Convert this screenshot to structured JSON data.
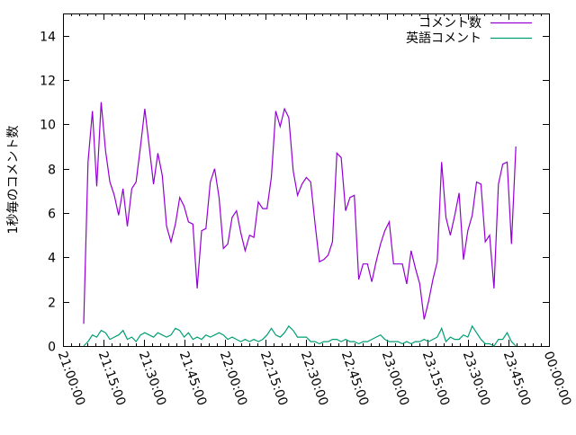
{
  "chart_data": {
    "type": "line",
    "title": "",
    "xlabel": "",
    "ylabel": "1秒毎のコメント数",
    "ylim": [
      0,
      15
    ],
    "xlim": [
      "21:00:00",
      "00:00:00"
    ],
    "yticks": [
      "0",
      "2",
      "4",
      "6",
      "8",
      "10",
      "12",
      "14"
    ],
    "xticks": [
      "21:00:00",
      "21:15:00",
      "21:30:00",
      "21:45:00",
      "22:00:00",
      "22:15:00",
      "22:30:00",
      "22:45:00",
      "23:00:00",
      "23:15:00",
      "23:30:00",
      "23:45:00",
      "00:00:00"
    ],
    "grid": false,
    "legend_position": "top-right",
    "x": [
      "21:07:40",
      "21:09:17",
      "21:10:54",
      "21:12:31",
      "21:14:08",
      "21:15:45",
      "21:17:22",
      "21:18:59",
      "21:20:36",
      "21:22:13",
      "21:23:50",
      "21:25:27",
      "21:27:04",
      "21:28:41",
      "21:30:18",
      "21:31:55",
      "21:33:32",
      "21:35:09",
      "21:36:46",
      "21:38:23",
      "21:40:00",
      "21:41:37",
      "21:43:14",
      "21:44:51",
      "21:46:28",
      "21:48:05",
      "21:49:42",
      "21:51:19",
      "21:52:56",
      "21:54:33",
      "21:56:10",
      "21:57:47",
      "21:59:24",
      "22:01:01",
      "22:02:38",
      "22:04:15",
      "22:05:52",
      "22:07:29",
      "22:09:06",
      "22:10:43",
      "22:12:20",
      "22:13:57",
      "22:15:34",
      "22:17:11",
      "22:18:48",
      "22:20:25",
      "22:22:02",
      "22:23:39",
      "22:25:16",
      "22:26:53",
      "22:28:30",
      "22:30:07",
      "22:31:44",
      "22:33:21",
      "22:34:58",
      "22:36:35",
      "22:38:12",
      "22:39:49",
      "22:41:26",
      "22:43:03",
      "22:44:40",
      "22:46:17",
      "22:47:54",
      "22:49:31",
      "22:51:08",
      "22:52:45",
      "22:54:22",
      "22:55:59",
      "22:57:36",
      "22:59:13",
      "23:00:50",
      "23:02:27",
      "23:04:04",
      "23:05:41",
      "23:07:18",
      "23:08:55",
      "23:10:32",
      "23:12:09",
      "23:13:46",
      "23:15:23",
      "23:17:00",
      "23:18:37",
      "23:20:14",
      "23:21:51",
      "23:23:28",
      "23:25:05",
      "23:26:42",
      "23:28:19",
      "23:29:56",
      "23:31:33",
      "23:33:10",
      "23:34:47",
      "23:36:24",
      "23:38:01",
      "23:39:38",
      "23:41:15",
      "23:42:52",
      "23:44:29",
      "23:46:06",
      "23:47:43"
    ],
    "series": [
      {
        "name": "コメント数",
        "color": "#9400d3",
        "values": [
          1.0,
          8.3,
          10.6,
          7.2,
          11.0,
          8.8,
          7.4,
          6.8,
          5.9,
          7.1,
          5.4,
          7.1,
          7.4,
          9.0,
          10.7,
          9.0,
          7.3,
          8.7,
          7.7,
          5.4,
          4.7,
          5.5,
          6.7,
          6.3,
          5.6,
          5.5,
          2.6,
          5.2,
          5.3,
          7.4,
          8.0,
          6.7,
          4.4,
          4.6,
          5.8,
          6.1,
          5.1,
          4.3,
          5.0,
          4.9,
          6.5,
          6.2,
          6.2,
          7.6,
          10.6,
          9.9,
          10.7,
          10.3,
          7.9,
          6.8,
          7.3,
          7.6,
          7.4,
          5.5,
          3.8,
          3.9,
          4.1,
          4.7,
          8.7,
          8.5,
          6.1,
          6.7,
          6.8,
          3.0,
          3.7,
          3.7,
          2.9,
          3.8,
          4.6,
          5.2,
          5.6,
          3.7,
          3.7,
          3.7,
          2.8,
          4.3,
          3.5,
          2.8,
          1.2,
          2.0,
          3.0,
          3.8,
          8.3,
          5.8,
          5.0,
          5.9,
          6.9,
          3.9,
          5.2,
          5.9,
          7.4,
          7.3,
          4.7,
          5.0,
          2.6,
          7.3,
          8.2,
          8.3,
          4.6,
          9.0
        ]
      },
      {
        "name": "英語コメント",
        "color": "#009e73",
        "values": [
          0,
          0.2,
          0.5,
          0.4,
          0.7,
          0.6,
          0.3,
          0.4,
          0.5,
          0.7,
          0.3,
          0.4,
          0.2,
          0.5,
          0.6,
          0.5,
          0.4,
          0.6,
          0.5,
          0.4,
          0.5,
          0.8,
          0.7,
          0.4,
          0.6,
          0.3,
          0.4,
          0.3,
          0.5,
          0.4,
          0.5,
          0.6,
          0.5,
          0.3,
          0.4,
          0.3,
          0.2,
          0.3,
          0.2,
          0.3,
          0.2,
          0.3,
          0.5,
          0.8,
          0.5,
          0.4,
          0.6,
          0.9,
          0.7,
          0.4,
          0.4,
          0.4,
          0.2,
          0.2,
          0.1,
          0.2,
          0.2,
          0.3,
          0.3,
          0.2,
          0.3,
          0.2,
          0.2,
          0.1,
          0.2,
          0.2,
          0.3,
          0.4,
          0.5,
          0.3,
          0.2,
          0.2,
          0.2,
          0.1,
          0.2,
          0.1,
          0.2,
          0.2,
          0.3,
          0.2,
          0.3,
          0.4,
          0.8,
          0.2,
          0.4,
          0.3,
          0.3,
          0.5,
          0.4,
          0.9,
          0.6,
          0.3,
          0.1,
          0.1,
          0.0,
          0.3,
          0.3,
          0.6,
          0.2,
          0.0
        ]
      }
    ]
  }
}
